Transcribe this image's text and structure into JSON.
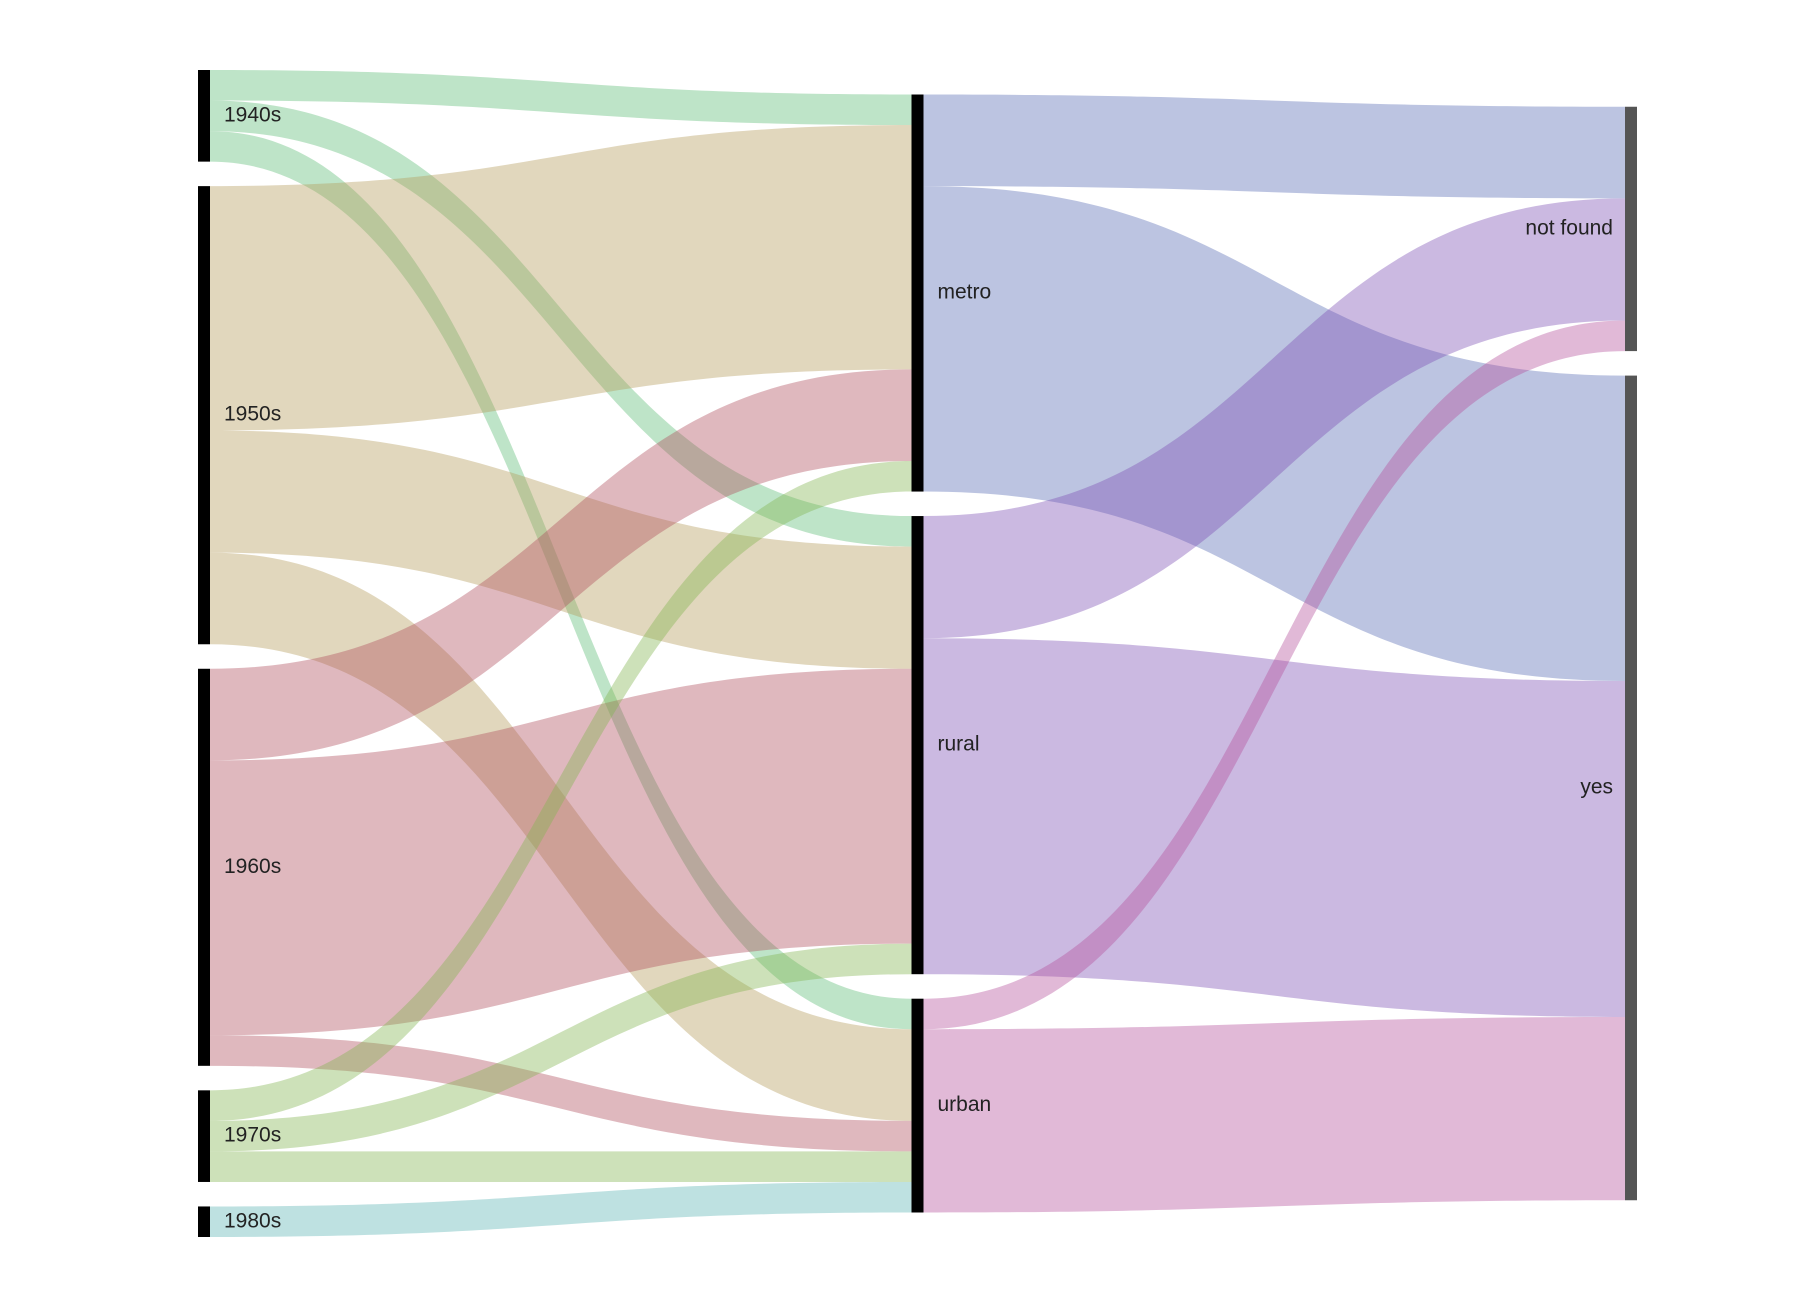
{
  "chart_data": {
    "type": "sankey",
    "nodes": [
      {
        "name": "1940s",
        "color": "#5cbb75",
        "bar_color": "#000000"
      },
      {
        "name": "1950s",
        "color": "#b59b5a",
        "bar_color": "#000000"
      },
      {
        "name": "1960s",
        "color": "#af4d5c",
        "bar_color": "#000000"
      },
      {
        "name": "1970s",
        "color": "#82b450",
        "bar_color": "#000000"
      },
      {
        "name": "1980s",
        "color": "#5cb4b4",
        "bar_color": "#000000"
      },
      {
        "name": "metro",
        "color": "#576bb4",
        "bar_color": "#000000"
      },
      {
        "name": "rural",
        "color": "#7d50b4",
        "bar_color": "#000000"
      },
      {
        "name": "urban",
        "color": "#b4509b",
        "bar_color": "#000000"
      },
      {
        "name": "not found",
        "bar_color": "#555555"
      },
      {
        "name": "yes",
        "bar_color": "#555555"
      }
    ],
    "links": [
      {
        "source": 0,
        "target": 5,
        "value": 1
      },
      {
        "source": 0,
        "target": 6,
        "value": 1
      },
      {
        "source": 0,
        "target": 7,
        "value": 1
      },
      {
        "source": 1,
        "target": 5,
        "value": 8
      },
      {
        "source": 1,
        "target": 6,
        "value": 4
      },
      {
        "source": 1,
        "target": 7,
        "value": 3
      },
      {
        "source": 2,
        "target": 5,
        "value": 3
      },
      {
        "source": 2,
        "target": 6,
        "value": 9
      },
      {
        "source": 2,
        "target": 7,
        "value": 1
      },
      {
        "source": 3,
        "target": 5,
        "value": 1
      },
      {
        "source": 3,
        "target": 6,
        "value": 1
      },
      {
        "source": 3,
        "target": 7,
        "value": 1
      },
      {
        "source": 4,
        "target": 7,
        "value": 1
      },
      {
        "source": 5,
        "target": 8,
        "value": 3
      },
      {
        "source": 5,
        "target": 9,
        "value": 10
      },
      {
        "source": 6,
        "target": 8,
        "value": 4
      },
      {
        "source": 6,
        "target": 9,
        "value": 11
      },
      {
        "source": 7,
        "target": 8,
        "value": 1
      },
      {
        "source": 7,
        "target": 9,
        "value": 6
      }
    ]
  }
}
